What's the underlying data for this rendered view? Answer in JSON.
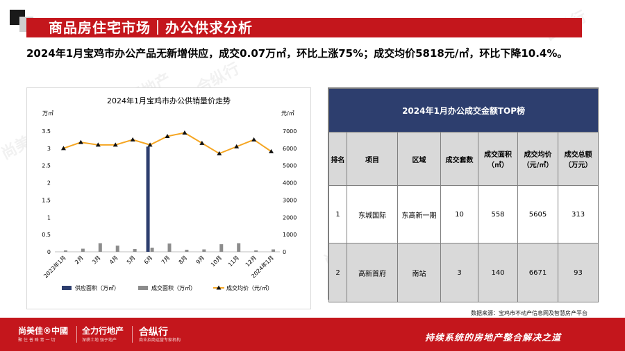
{
  "header": {
    "title": "商品房住宅市场｜办公供求分析"
  },
  "subtitle": "2024年1月宝鸡市办公产品无新增供应，成交0.07万㎡，环比上涨75%；成交均价5818元/㎡，环比下降10.4%。",
  "chart_data": {
    "type": "bar",
    "title": "2024年1月宝鸡市办公供销量价走势",
    "ylabel": "万㎡",
    "y2label": "元/㎡",
    "categories": [
      "2023年1月",
      "2月",
      "3月",
      "4月",
      "5月",
      "6月",
      "7月",
      "8月",
      "9月",
      "10月",
      "11月",
      "12月",
      "2024年1月"
    ],
    "ylim": [
      0,
      3.5
    ],
    "y2lim": [
      0,
      7000
    ],
    "yticks": [
      "0",
      "0.5",
      "1",
      "1.5",
      "2",
      "2.5",
      "3",
      "3.5"
    ],
    "y2ticks": [
      "0",
      "1000",
      "2000",
      "3000",
      "4000",
      "5000",
      "6000",
      "7000"
    ],
    "series": [
      {
        "name": "供应面积（万㎡）",
        "kind": "bar",
        "axis": "left",
        "color": "#2d3e6e",
        "values": [
          0,
          0,
          0,
          0,
          0,
          3.05,
          0,
          0,
          0,
          0,
          0,
          0,
          0
        ]
      },
      {
        "name": "成交面积（万㎡）",
        "kind": "bar",
        "axis": "left",
        "color": "#8c8c8c",
        "values": [
          0.04,
          0.09,
          0.25,
          0.18,
          0.08,
          0.12,
          0.24,
          0.06,
          0.07,
          0.22,
          0.25,
          0.04,
          0.07
        ]
      },
      {
        "name": "成交均价（元/㎡）",
        "kind": "line",
        "axis": "right",
        "color": "#f5a623",
        "values": [
          6000,
          6350,
          6200,
          6200,
          6500,
          6200,
          6700,
          6900,
          6300,
          5700,
          6100,
          6500,
          5818
        ]
      }
    ],
    "legend": "bottom"
  },
  "table": {
    "title": "2024年1月办公成交金额TOP榜",
    "headers": [
      "排名",
      "项目",
      "区域",
      "成交套数",
      "成交面积（㎡）",
      "成交均价（元/㎡）",
      "成交总额（万元）"
    ],
    "rows": [
      [
        "1",
        "东城国际",
        "东高新一期",
        "10",
        "558",
        "5605",
        "313"
      ],
      [
        "2",
        "高新首府",
        "南站",
        "3",
        "140",
        "6671",
        "93"
      ]
    ]
  },
  "source": "数据来源：宝鸡市不动产信息网及智慧房产平台",
  "footer": {
    "brand1": "尚美佳®中國",
    "brand1_sub": "聚 住 普 睐 青 一 切",
    "brand2": "全力行地产",
    "brand2_sub": "深耕土地 强于地产",
    "brand3": "合纵行",
    "brand3_sub": "商业招商运营专家机构",
    "slogan": "持续系统的房地产整合解决之道"
  },
  "watermarks": [
    "尚美佳®中國",
    "全力行地产",
    "合纵行"
  ]
}
